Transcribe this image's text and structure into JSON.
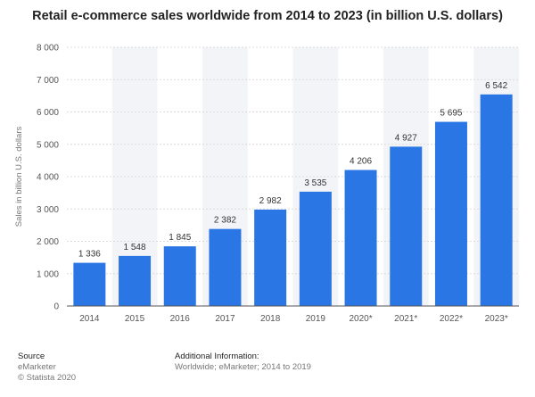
{
  "title": "Retail e-commerce sales worldwide from 2014 to 2023 (in billion U.S. dollars)",
  "colors": {
    "bar": "#2b76e5",
    "band": "#f2f4f8",
    "grid": "#dcdcdc",
    "axis": "#555555"
  },
  "chart_data": {
    "type": "bar",
    "title": "Retail e-commerce sales worldwide from 2014 to 2023 (in billion U.S. dollars)",
    "xlabel": "",
    "ylabel": "Sales in billion U.S. dollars",
    "ylim": [
      0,
      8000
    ],
    "yticks": [
      0,
      1000,
      2000,
      3000,
      4000,
      5000,
      6000,
      7000,
      8000
    ],
    "ytick_labels": [
      "0",
      "1 000",
      "2 000",
      "3 000",
      "4 000",
      "5 000",
      "6 000",
      "7 000",
      "8 000"
    ],
    "categories": [
      "2014",
      "2015",
      "2016",
      "2017",
      "2018",
      "2019",
      "2020*",
      "2021*",
      "2022*",
      "2023*"
    ],
    "values": [
      1336,
      1548,
      1845,
      2382,
      2982,
      3535,
      4206,
      4927,
      5695,
      6542
    ],
    "value_labels": [
      "1 336",
      "1 548",
      "1 845",
      "2 382",
      "2 982",
      "3 535",
      "4 206",
      "4 927",
      "5 695",
      "6 542"
    ],
    "grid": true
  },
  "footer": {
    "source_heading": "Source",
    "source_lines": [
      "eMarketer",
      "© Statista 2020"
    ],
    "info_heading": "Additional Information:",
    "info_line": "Worldwide; eMarketer; 2014 to 2019"
  }
}
